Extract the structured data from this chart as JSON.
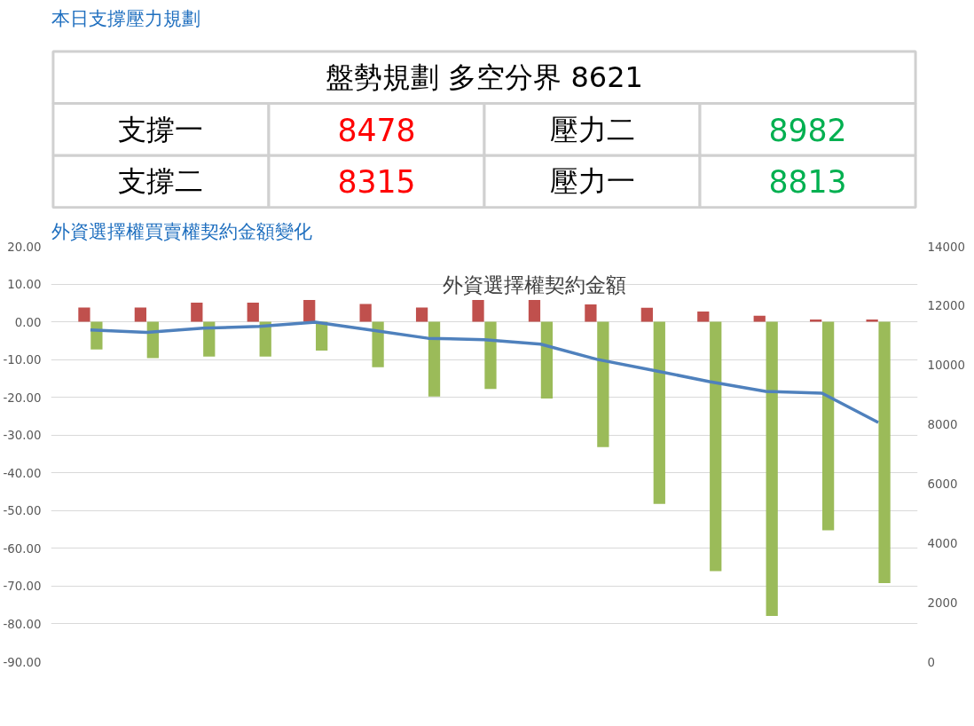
{
  "chart_data": [
    {
      "type": "other",
      "title": "本日支撐壓力規劃",
      "subtitle": "盤勢規劃 多空分界 8621",
      "annotations": [
        "支撐一",
        "8478",
        "壓力二",
        "8982",
        "支撐二",
        "8315",
        "壓力一",
        "8813"
      ]
    },
    {
      "type": "bar",
      "title": "外資選擇權買賣權契約金額變化",
      "subtitle": "外資選擇權契約金額",
      "categories": [
        null,
        null,
        null,
        null,
        null,
        null,
        null,
        null,
        null,
        null,
        null,
        null,
        null,
        null,
        null
      ],
      "series": [
        {
          "type": "bar",
          "color": "#c0504d",
          "values": [
            3.8,
            3.8,
            5.1,
            5.1,
            5.8,
            4.7,
            3.8,
            5.8,
            5.8,
            4.6,
            3.7,
            2.7,
            1.6,
            0.6,
            0.6
          ]
        },
        {
          "type": "bar",
          "color": "#9bbb59",
          "values": [
            -7.3,
            -9.6,
            -9.2,
            -9.2,
            -7.6,
            -12.0,
            -19.8,
            -17.8,
            -20.3,
            -33.2,
            -48.2,
            -66.0,
            -77.9,
            -55.2,
            -69.2
          ]
        },
        {
          "type": "line",
          "axis": "y2",
          "color": "#4f81bd",
          "values": [
            11180,
            11100,
            11240,
            11300,
            11440,
            11170,
            10900,
            10850,
            10700,
            10190,
            9820,
            9440,
            9110,
            9050,
            8060
          ]
        }
      ],
      "ylim": [
        -90,
        20
      ],
      "yticks": [
        {
          "value": 20,
          "label": "20.00"
        },
        {
          "value": 10,
          "label": "10.00"
        },
        {
          "value": 0,
          "label": "0.00"
        },
        {
          "value": -10,
          "label": "-10.00"
        },
        {
          "value": -20,
          "label": "-20.00"
        },
        {
          "value": -30,
          "label": "-30.00"
        },
        {
          "value": -40,
          "label": "-40.00"
        },
        {
          "value": -50,
          "label": "-50.00"
        },
        {
          "value": -60,
          "label": "-60.00"
        },
        {
          "value": -70,
          "label": "-70.00"
        },
        {
          "value": -80,
          "label": "-80.00"
        },
        {
          "value": -90,
          "label": "-90.00"
        }
      ],
      "y2lim": [
        0,
        14000
      ],
      "y2ticks": [
        0,
        2000,
        4000,
        6000,
        8000,
        10000,
        12000,
        14000
      ],
      "grid": "y"
    }
  ]
}
